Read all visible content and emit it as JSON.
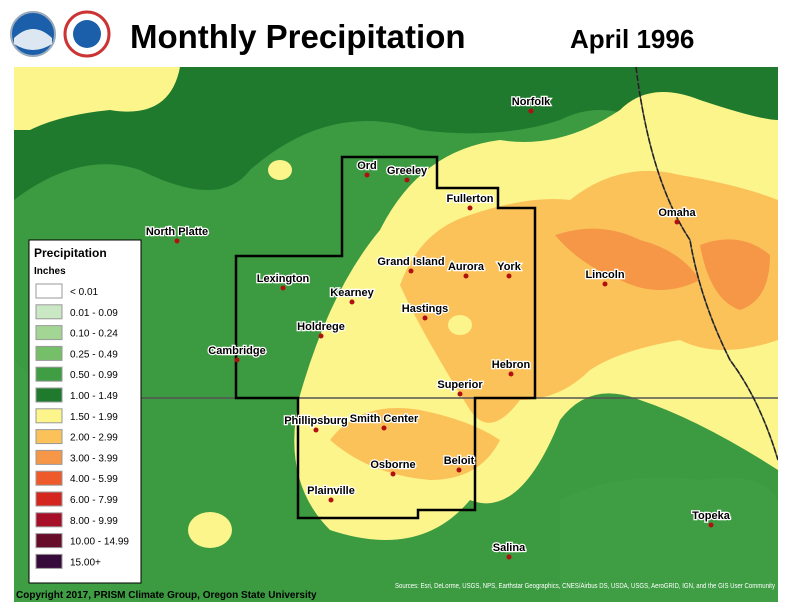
{
  "header": {
    "title": "Monthly Precipitation",
    "date": "April 1996"
  },
  "legend": {
    "title": "Precipitation",
    "units": "Inches",
    "items": [
      {
        "label": "< 0.01",
        "color": "#ffffff"
      },
      {
        "label": "0.01 - 0.09",
        "color": "#cbe8c4"
      },
      {
        "label": "0.10 - 0.24",
        "color": "#a3d594"
      },
      {
        "label": "0.25 - 0.49",
        "color": "#74bf68"
      },
      {
        "label": "0.50 - 0.99",
        "color": "#3f9e44"
      },
      {
        "label": "1.00 - 1.49",
        "color": "#1f7a2e"
      },
      {
        "label": "1.50 - 1.99",
        "color": "#fcf58c"
      },
      {
        "label": "2.00 - 2.99",
        "color": "#fbc25a"
      },
      {
        "label": "3.00 - 3.99",
        "color": "#f59747"
      },
      {
        "label": "4.00 - 5.99",
        "color": "#ee5a2a"
      },
      {
        "label": "6.00 - 7.99",
        "color": "#d5251f"
      },
      {
        "label": "8.00 - 9.99",
        "color": "#a60f27"
      },
      {
        "label": "10.00 - 14.99",
        "color": "#680d29"
      },
      {
        "label": "15.00+",
        "color": "#360a3a"
      }
    ]
  },
  "cities": [
    "Norfolk",
    "Ord",
    "Greeley",
    "Fullerton",
    "North Platte",
    "Grand Island",
    "Aurora",
    "York",
    "Lincoln",
    "Omaha",
    "Lexington",
    "Kearney",
    "Hastings",
    "Holdrege",
    "Cambridge",
    "Hebron",
    "Superior",
    "Phillipsburg",
    "Smith Center",
    "Beloit",
    "Osborne",
    "Plainville",
    "Topeka",
    "Salina"
  ],
  "footer": {
    "copyright": "Copyright 2017, PRISM Climate Group, Oregon State University",
    "sources": "Sources: Esri, DeLorme, USGS, NPS, Earthstar Geographics, CNES/Airbus DS, USDA, USGS, AeroGRID, IGN, and the GIS User Community"
  }
}
